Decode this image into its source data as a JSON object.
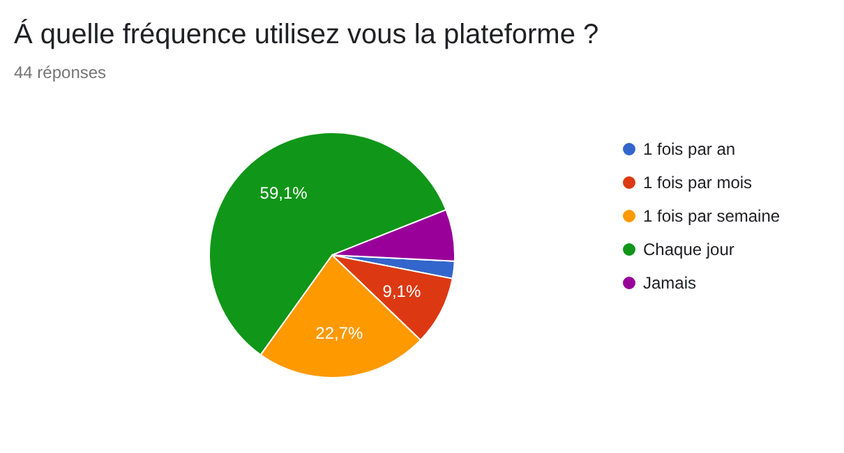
{
  "chart_data": {
    "type": "pie",
    "title": "Á quelle fréquence utilisez vous la plateforme ?",
    "subtitle": "44 réponses",
    "categories": [
      "1 fois par an",
      "1 fois par mois",
      "1 fois par semaine",
      "Chaque jour",
      "Jamais"
    ],
    "values": [
      2.3,
      9.1,
      22.7,
      59.1,
      6.8
    ],
    "colors": [
      "#3366cc",
      "#dc3912",
      "#ff9900",
      "#109618",
      "#990099"
    ],
    "value_labels": [
      null,
      "9,1%",
      "22,7%",
      "59,1%",
      null
    ],
    "legend": "right"
  }
}
